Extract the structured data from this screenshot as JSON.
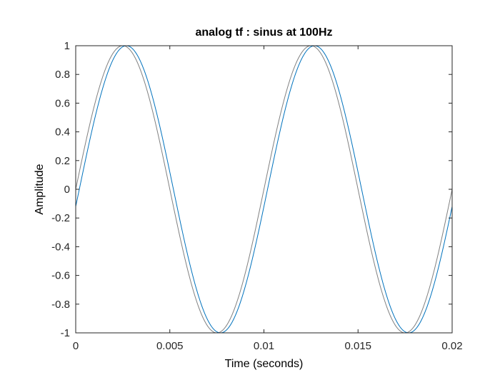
{
  "chart_data": {
    "type": "line",
    "title": "analog tf : sinus at 100Hz",
    "xlabel": "Time (seconds)",
    "ylabel": "Amplitude",
    "xlim": [
      0,
      0.02
    ],
    "ylim": [
      -1,
      1
    ],
    "xticks": [
      0,
      0.005,
      0.01,
      0.015,
      0.02
    ],
    "xtick_labels": [
      "0",
      "0.005",
      "0.01",
      "0.015",
      "0.02"
    ],
    "yticks": [
      -1,
      -0.8,
      -0.6,
      -0.4,
      -0.2,
      0,
      0.2,
      0.4,
      0.6,
      0.8,
      1
    ],
    "ytick_labels": [
      "-1",
      "-0.8",
      "-0.6",
      "-0.4",
      "-0.2",
      "0",
      "0.2",
      "0.4",
      "0.6",
      "0.8",
      "1"
    ],
    "grid": false,
    "series": [
      {
        "color": "#808080",
        "function": "sine",
        "frequency_hz": 100,
        "amplitude": 1,
        "phase_rad": 0
      },
      {
        "color": "#0072BD",
        "function": "sine",
        "frequency_hz": 100,
        "amplitude": 1,
        "phase_rad": -0.12
      }
    ]
  }
}
